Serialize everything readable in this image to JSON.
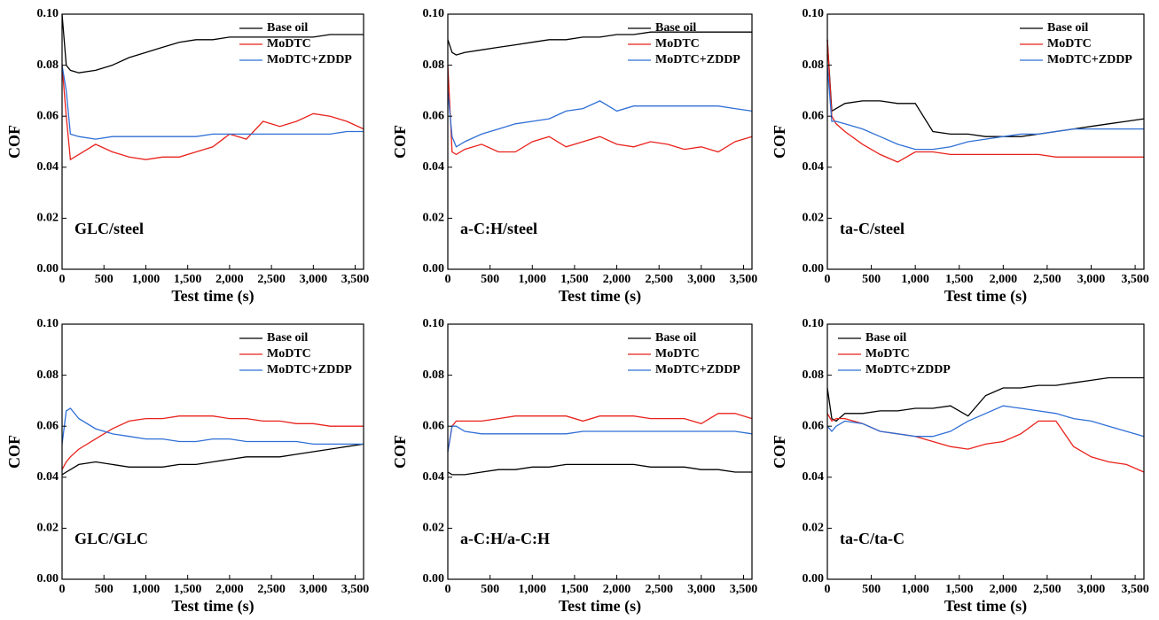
{
  "chart_data": [
    {
      "type": "line",
      "annotation": "GLC/steel",
      "xlabel": "Test time (s)",
      "ylabel": "COF",
      "legend": "upper right",
      "x": [
        0,
        50,
        100,
        200,
        400,
        600,
        800,
        1000,
        1200,
        1400,
        1600,
        1800,
        2000,
        2200,
        2400,
        2600,
        2800,
        3000,
        3200,
        3400,
        3600
      ],
      "xlim": [
        0,
        3600
      ],
      "ylim": [
        0,
        0.1
      ],
      "xticks": [
        0,
        500,
        {
          "value": 1000,
          "label": "1,000"
        },
        {
          "value": 1500,
          "label": "1,500"
        },
        {
          "value": 2000,
          "label": "2,000"
        },
        {
          "value": 2500,
          "label": "2,500"
        },
        {
          "value": 3000,
          "label": "3,000"
        },
        {
          "value": 3500,
          "label": "3,500"
        }
      ],
      "yticks": [
        {
          "value": 0,
          "label": "0.00"
        },
        {
          "value": 0.02,
          "label": "0.02"
        },
        {
          "value": 0.04,
          "label": "0.04"
        },
        {
          "value": 0.06,
          "label": "0.06"
        },
        {
          "value": 0.08,
          "label": "0.08"
        },
        {
          "value": 0.1,
          "label": "0.10"
        }
      ],
      "series": [
        {
          "name": "Base oil",
          "color": "#000000",
          "values": [
            0.1,
            0.08,
            0.078,
            0.077,
            0.078,
            0.08,
            0.083,
            0.085,
            0.087,
            0.089,
            0.09,
            0.09,
            0.091,
            0.091,
            0.091,
            0.091,
            0.091,
            0.091,
            0.092,
            0.092,
            0.092
          ]
        },
        {
          "name": "MoDTC",
          "color": "#e8221c",
          "values": [
            0.08,
            0.06,
            0.043,
            0.045,
            0.049,
            0.046,
            0.044,
            0.043,
            0.044,
            0.044,
            0.046,
            0.048,
            0.053,
            0.051,
            0.058,
            0.056,
            0.058,
            0.061,
            0.06,
            0.058,
            0.055
          ]
        },
        {
          "name": "MoDTC+ZDDP",
          "color": "#2f6fd6",
          "values": [
            0.08,
            0.07,
            0.053,
            0.052,
            0.051,
            0.052,
            0.052,
            0.052,
            0.052,
            0.052,
            0.052,
            0.053,
            0.053,
            0.053,
            0.053,
            0.053,
            0.053,
            0.053,
            0.053,
            0.054,
            0.054
          ]
        }
      ]
    },
    {
      "type": "line",
      "annotation": "a-C:H/steel",
      "xlabel": "Test time (s)",
      "ylabel": "COF",
      "legend": "upper right",
      "x": [
        0,
        50,
        100,
        200,
        400,
        600,
        800,
        1000,
        1200,
        1400,
        1600,
        1800,
        2000,
        2200,
        2400,
        2600,
        2800,
        3000,
        3200,
        3400,
        3600
      ],
      "xlim": [
        0,
        3600
      ],
      "ylim": [
        0,
        0.1
      ],
      "xticks": [
        0,
        500,
        {
          "value": 1000,
          "label": "1,000"
        },
        {
          "value": 1500,
          "label": "1,500"
        },
        {
          "value": 2000,
          "label": "2,000"
        },
        {
          "value": 2500,
          "label": "2,500"
        },
        {
          "value": 3000,
          "label": "3,000"
        },
        {
          "value": 3500,
          "label": "3,500"
        }
      ],
      "yticks": [
        {
          "value": 0,
          "label": "0.00"
        },
        {
          "value": 0.02,
          "label": "0.02"
        },
        {
          "value": 0.04,
          "label": "0.04"
        },
        {
          "value": 0.06,
          "label": "0.06"
        },
        {
          "value": 0.08,
          "label": "0.08"
        },
        {
          "value": 0.1,
          "label": "0.10"
        }
      ],
      "series": [
        {
          "name": "Base oil",
          "color": "#000000",
          "values": [
            0.09,
            0.085,
            0.084,
            0.085,
            0.086,
            0.087,
            0.088,
            0.089,
            0.09,
            0.09,
            0.091,
            0.091,
            0.092,
            0.092,
            0.093,
            0.093,
            0.093,
            0.093,
            0.093,
            0.093,
            0.093
          ]
        },
        {
          "name": "MoDTC",
          "color": "#e8221c",
          "values": [
            0.08,
            0.046,
            0.045,
            0.047,
            0.049,
            0.046,
            0.046,
            0.05,
            0.052,
            0.048,
            0.05,
            0.052,
            0.049,
            0.048,
            0.05,
            0.049,
            0.047,
            0.048,
            0.046,
            0.05,
            0.052
          ]
        },
        {
          "name": "MoDTC+ZDDP",
          "color": "#2f6fd6",
          "values": [
            0.07,
            0.052,
            0.048,
            0.05,
            0.053,
            0.055,
            0.057,
            0.058,
            0.059,
            0.062,
            0.063,
            0.066,
            0.062,
            0.064,
            0.064,
            0.064,
            0.064,
            0.064,
            0.064,
            0.063,
            0.062
          ]
        }
      ]
    },
    {
      "type": "line",
      "annotation": "ta-C/steel",
      "xlabel": "Test time (s)",
      "ylabel": "COF",
      "legend": "upper right",
      "x": [
        0,
        50,
        100,
        200,
        400,
        600,
        800,
        1000,
        1200,
        1400,
        1600,
        1800,
        2000,
        2200,
        2400,
        2600,
        2800,
        3000,
        3200,
        3400,
        3600
      ],
      "xlim": [
        0,
        3600
      ],
      "ylim": [
        0,
        0.1
      ],
      "xticks": [
        0,
        500,
        {
          "value": 1000,
          "label": "1,000"
        },
        {
          "value": 1500,
          "label": "1,500"
        },
        {
          "value": 2000,
          "label": "2,000"
        },
        {
          "value": 2500,
          "label": "2,500"
        },
        {
          "value": 3000,
          "label": "3,000"
        },
        {
          "value": 3500,
          "label": "3,500"
        }
      ],
      "yticks": [
        {
          "value": 0,
          "label": "0.00"
        },
        {
          "value": 0.02,
          "label": "0.02"
        },
        {
          "value": 0.04,
          "label": "0.04"
        },
        {
          "value": 0.06,
          "label": "0.06"
        },
        {
          "value": 0.08,
          "label": "0.08"
        },
        {
          "value": 0.1,
          "label": "0.10"
        }
      ],
      "series": [
        {
          "name": "Base oil",
          "color": "#000000",
          "values": [
            0.09,
            0.062,
            0.063,
            0.065,
            0.066,
            0.066,
            0.065,
            0.065,
            0.054,
            0.053,
            0.053,
            0.052,
            0.052,
            0.052,
            0.053,
            0.054,
            0.055,
            0.056,
            0.057,
            0.058,
            0.059
          ]
        },
        {
          "name": "MoDTC",
          "color": "#e8221c",
          "values": [
            0.09,
            0.06,
            0.057,
            0.054,
            0.049,
            0.045,
            0.042,
            0.046,
            0.046,
            0.045,
            0.045,
            0.045,
            0.045,
            0.045,
            0.045,
            0.044,
            0.044,
            0.044,
            0.044,
            0.044,
            0.044
          ]
        },
        {
          "name": "MoDTC+ZDDP",
          "color": "#2f6fd6",
          "values": [
            0.08,
            0.058,
            0.058,
            0.057,
            0.055,
            0.052,
            0.049,
            0.047,
            0.047,
            0.048,
            0.05,
            0.051,
            0.052,
            0.053,
            0.053,
            0.054,
            0.055,
            0.055,
            0.055,
            0.055,
            0.055
          ]
        }
      ]
    },
    {
      "type": "line",
      "annotation": "GLC/GLC",
      "xlabel": "Test time (s)",
      "ylabel": "COF",
      "legend": "upper right",
      "x": [
        0,
        50,
        100,
        200,
        400,
        600,
        800,
        1000,
        1200,
        1400,
        1600,
        1800,
        2000,
        2200,
        2400,
        2600,
        2800,
        3000,
        3200,
        3400,
        3600
      ],
      "xlim": [
        0,
        3600
      ],
      "ylim": [
        0,
        0.1
      ],
      "xticks": [
        0,
        500,
        {
          "value": 1000,
          "label": "1,000"
        },
        {
          "value": 1500,
          "label": "1,500"
        },
        {
          "value": 2000,
          "label": "2,000"
        },
        {
          "value": 2500,
          "label": "2,500"
        },
        {
          "value": 3000,
          "label": "3,000"
        },
        {
          "value": 3500,
          "label": "3,500"
        }
      ],
      "yticks": [
        {
          "value": 0,
          "label": "0.00"
        },
        {
          "value": 0.02,
          "label": "0.02"
        },
        {
          "value": 0.04,
          "label": "0.04"
        },
        {
          "value": 0.06,
          "label": "0.06"
        },
        {
          "value": 0.08,
          "label": "0.08"
        },
        {
          "value": 0.1,
          "label": "0.10"
        }
      ],
      "series": [
        {
          "name": "Base oil",
          "color": "#000000",
          "values": [
            0.041,
            0.042,
            0.043,
            0.045,
            0.046,
            0.045,
            0.044,
            0.044,
            0.044,
            0.045,
            0.045,
            0.046,
            0.047,
            0.048,
            0.048,
            0.048,
            0.049,
            0.05,
            0.051,
            0.052,
            0.053
          ]
        },
        {
          "name": "MoDTC",
          "color": "#e8221c",
          "values": [
            0.043,
            0.046,
            0.048,
            0.051,
            0.055,
            0.059,
            0.062,
            0.063,
            0.063,
            0.064,
            0.064,
            0.064,
            0.063,
            0.063,
            0.062,
            0.062,
            0.061,
            0.061,
            0.06,
            0.06,
            0.06
          ]
        },
        {
          "name": "MoDTC+ZDDP",
          "color": "#2f6fd6",
          "values": [
            0.053,
            0.066,
            0.067,
            0.063,
            0.059,
            0.057,
            0.056,
            0.055,
            0.055,
            0.054,
            0.054,
            0.055,
            0.055,
            0.054,
            0.054,
            0.054,
            0.054,
            0.053,
            0.053,
            0.053,
            0.053
          ]
        }
      ]
    },
    {
      "type": "line",
      "annotation": "a-C:H/a-C:H",
      "xlabel": "Test time (s)",
      "ylabel": "COF",
      "legend": "upper right",
      "x": [
        0,
        50,
        100,
        200,
        400,
        600,
        800,
        1000,
        1200,
        1400,
        1600,
        1800,
        2000,
        2200,
        2400,
        2600,
        2800,
        3000,
        3200,
        3400,
        3600
      ],
      "xlim": [
        0,
        3600
      ],
      "ylim": [
        0,
        0.1
      ],
      "xticks": [
        0,
        500,
        {
          "value": 1000,
          "label": "1,000"
        },
        {
          "value": 1500,
          "label": "1,500"
        },
        {
          "value": 2000,
          "label": "2,000"
        },
        {
          "value": 2500,
          "label": "2,500"
        },
        {
          "value": 3000,
          "label": "3,000"
        },
        {
          "value": 3500,
          "label": "3,500"
        }
      ],
      "yticks": [
        {
          "value": 0,
          "label": "0.00"
        },
        {
          "value": 0.02,
          "label": "0.02"
        },
        {
          "value": 0.04,
          "label": "0.04"
        },
        {
          "value": 0.06,
          "label": "0.06"
        },
        {
          "value": 0.08,
          "label": "0.08"
        },
        {
          "value": 0.1,
          "label": "0.10"
        }
      ],
      "series": [
        {
          "name": "Base oil",
          "color": "#000000",
          "values": [
            0.042,
            0.041,
            0.041,
            0.041,
            0.042,
            0.043,
            0.043,
            0.044,
            0.044,
            0.045,
            0.045,
            0.045,
            0.045,
            0.045,
            0.044,
            0.044,
            0.044,
            0.043,
            0.043,
            0.042,
            0.042
          ]
        },
        {
          "name": "MoDTC",
          "color": "#e8221c",
          "values": [
            0.05,
            0.06,
            0.062,
            0.062,
            0.062,
            0.063,
            0.064,
            0.064,
            0.064,
            0.064,
            0.062,
            0.064,
            0.064,
            0.064,
            0.063,
            0.063,
            0.063,
            0.061,
            0.065,
            0.065,
            0.063
          ]
        },
        {
          "name": "MoDTC+ZDDP",
          "color": "#2f6fd6",
          "values": [
            0.05,
            0.06,
            0.06,
            0.058,
            0.057,
            0.057,
            0.057,
            0.057,
            0.057,
            0.057,
            0.058,
            0.058,
            0.058,
            0.058,
            0.058,
            0.058,
            0.058,
            0.058,
            0.058,
            0.058,
            0.057
          ]
        }
      ]
    },
    {
      "type": "line",
      "annotation": "ta-C/ta-C",
      "xlabel": "Test time (s)",
      "ylabel": "COF",
      "legend": "upper left",
      "x": [
        0,
        50,
        100,
        200,
        400,
        600,
        800,
        1000,
        1200,
        1400,
        1600,
        1800,
        2000,
        2200,
        2400,
        2600,
        2800,
        3000,
        3200,
        3400,
        3600
      ],
      "xlim": [
        0,
        3600
      ],
      "ylim": [
        0,
        0.1
      ],
      "xticks": [
        0,
        500,
        {
          "value": 1000,
          "label": "1,000"
        },
        {
          "value": 1500,
          "label": "1,500"
        },
        {
          "value": 2000,
          "label": "2,000"
        },
        {
          "value": 2500,
          "label": "2,500"
        },
        {
          "value": 3000,
          "label": "3,000"
        },
        {
          "value": 3500,
          "label": "3,500"
        }
      ],
      "yticks": [
        {
          "value": 0,
          "label": "0.00"
        },
        {
          "value": 0.02,
          "label": "0.02"
        },
        {
          "value": 0.04,
          "label": "0.04"
        },
        {
          "value": 0.06,
          "label": "0.06"
        },
        {
          "value": 0.08,
          "label": "0.08"
        },
        {
          "value": 0.1,
          "label": "0.10"
        }
      ],
      "series": [
        {
          "name": "Base oil",
          "color": "#000000",
          "values": [
            0.075,
            0.063,
            0.062,
            0.065,
            0.065,
            0.066,
            0.066,
            0.067,
            0.067,
            0.068,
            0.064,
            0.072,
            0.075,
            0.075,
            0.076,
            0.076,
            0.077,
            0.078,
            0.079,
            0.079,
            0.079
          ]
        },
        {
          "name": "MoDTC",
          "color": "#e8221c",
          "values": [
            0.065,
            0.062,
            0.063,
            0.063,
            0.061,
            0.058,
            0.057,
            0.056,
            0.054,
            0.052,
            0.051,
            0.053,
            0.054,
            0.057,
            0.062,
            0.062,
            0.052,
            0.048,
            0.046,
            0.045,
            0.042
          ]
        },
        {
          "name": "MoDTC+ZDDP",
          "color": "#2f6fd6",
          "values": [
            0.06,
            0.058,
            0.06,
            0.062,
            0.061,
            0.058,
            0.057,
            0.056,
            0.056,
            0.058,
            0.062,
            0.065,
            0.068,
            0.067,
            0.066,
            0.065,
            0.063,
            0.062,
            0.06,
            0.058,
            0.056
          ]
        }
      ]
    }
  ]
}
